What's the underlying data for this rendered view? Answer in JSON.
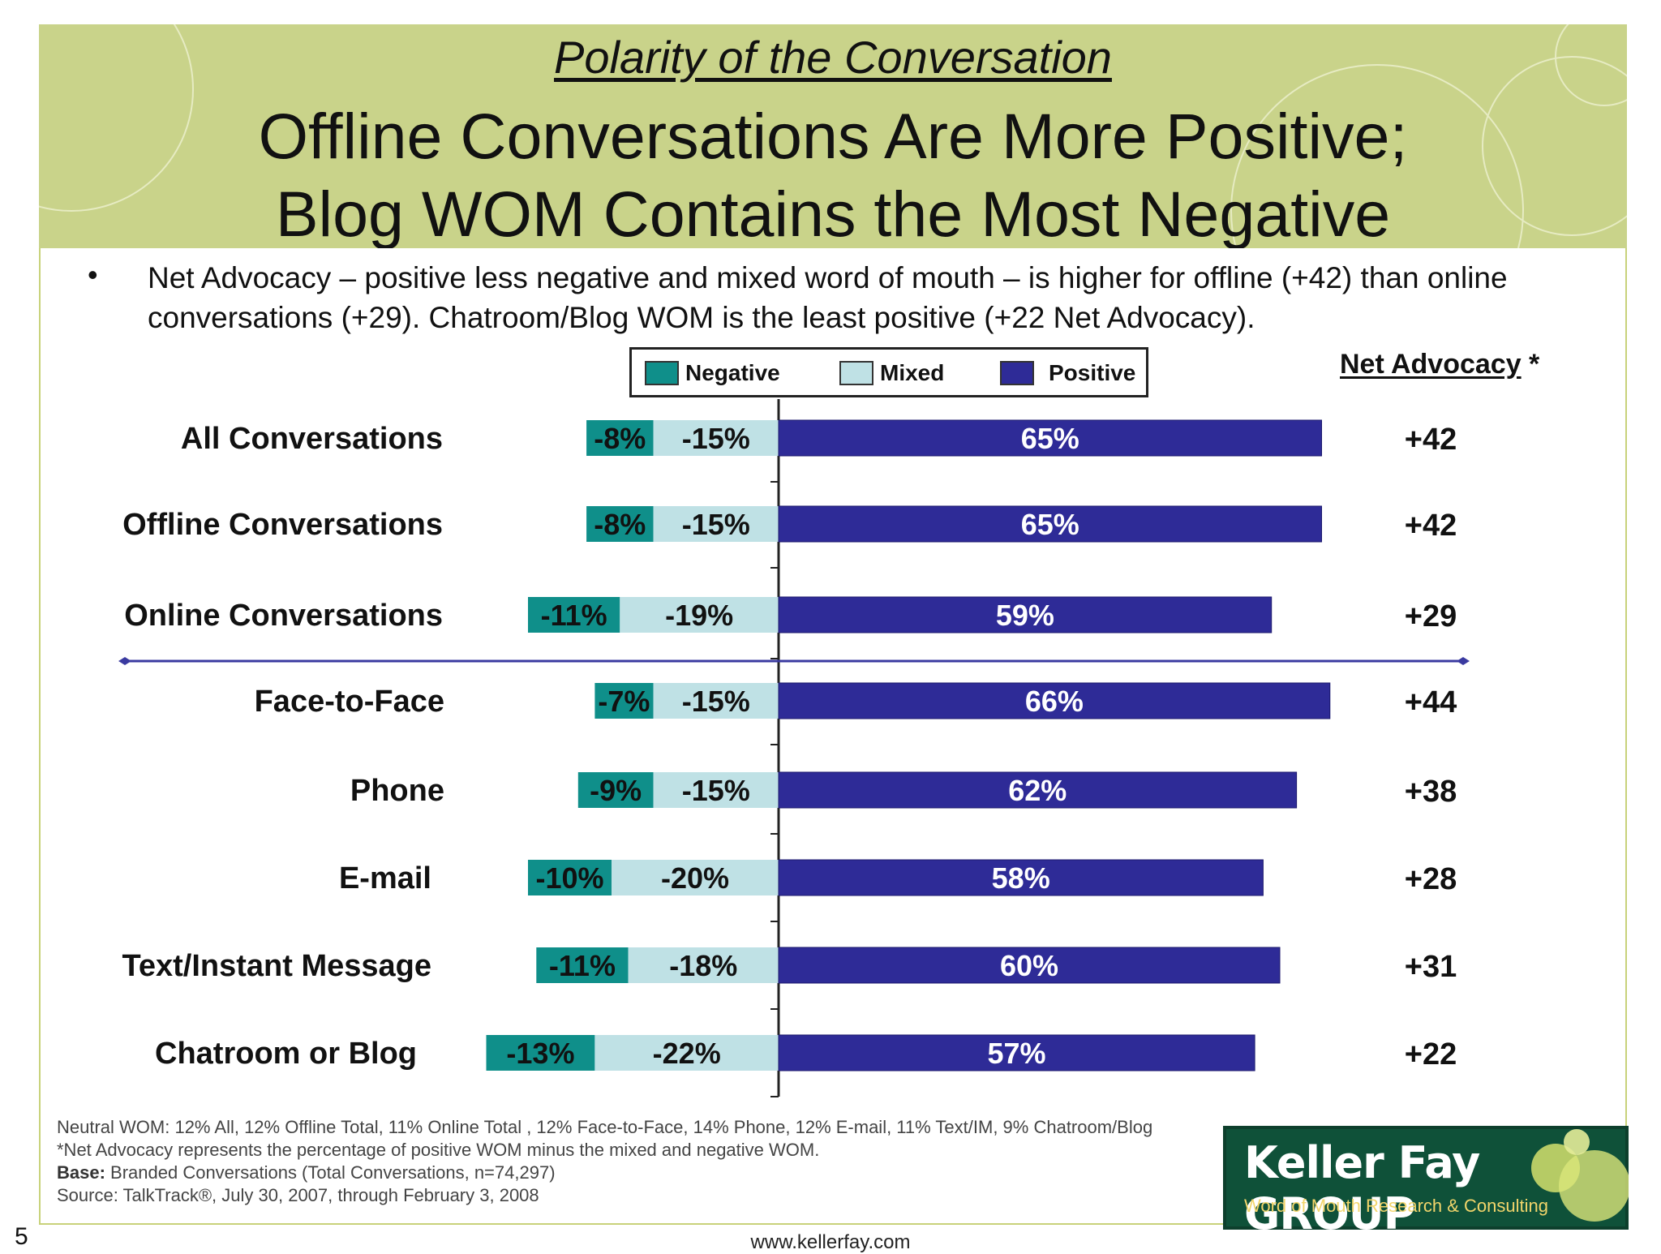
{
  "header": {
    "subtitle": "Polarity of the Conversation",
    "title_line1": "Offline Conversations Are More Positive;",
    "title_line2": "Blog WOM Contains the Most Negative"
  },
  "bullet": {
    "marker": "•",
    "text": "Net Advocacy – positive less negative and mixed word of mouth – is higher for offline (+42) than online conversations (+29). Chatroom/Blog WOM is the least positive (+22 Net Advocacy)."
  },
  "net_advocacy_header": {
    "label": "Net Advocacy",
    "suffix": " *"
  },
  "chart_data": {
    "type": "bar",
    "orientation": "horizontal",
    "stacked": true,
    "categories": [
      "All Conversations",
      "Offline Conversations",
      "Online Conversations",
      "Face-to-Face",
      "Phone",
      "E-mail",
      "Text/Instant Message",
      "Chatroom or Blog"
    ],
    "series": [
      {
        "name": "Negative",
        "color": "#0f8f8a",
        "values": [
          -8,
          -8,
          -11,
          -7,
          -9,
          -10,
          -11,
          -13
        ],
        "labels": [
          "-8%",
          "-8%",
          "-11%",
          "-7%",
          "-9%",
          "-10%",
          "-11%",
          "-13%"
        ]
      },
      {
        "name": "Mixed",
        "color": "#bfe1e5",
        "values": [
          -15,
          -15,
          -19,
          -15,
          -15,
          -20,
          -18,
          -22
        ],
        "labels": [
          "-15%",
          "-15%",
          "-19%",
          "-15%",
          "-15%",
          "-20%",
          "-18%",
          "-22%"
        ]
      },
      {
        "name": "Positive",
        "color": "#2e2b97",
        "values": [
          65,
          65,
          59,
          66,
          62,
          58,
          60,
          57
        ],
        "labels": [
          "65%",
          "65%",
          "59%",
          "66%",
          "62%",
          "58%",
          "60%",
          "57%"
        ]
      }
    ],
    "net_advocacy": [
      "+42",
      "+42",
      "+29",
      "+44",
      "+38",
      "+28",
      "+31",
      "+22"
    ],
    "legend_position": "top",
    "separator_after_category": "Online Conversations",
    "grid": false
  },
  "footnotes": {
    "neutral": "Neutral WOM: 12% All, 12% Offline Total, 11% Online Total , 12% Face-to-Face, 14% Phone, 12% E-mail, 11% Text/IM, 9% Chatroom/Blog",
    "net_def": "*Net Advocacy represents the percentage of positive WOM minus the mixed and negative WOM.",
    "base_label": "Base:",
    "base_text": " Branded Conversations (Total Conversations, n=74,297)",
    "source": "Source: TalkTrack®, July 30, 2007, through February 3, 2008"
  },
  "page_number": "5",
  "website": "www.kellerfay.com",
  "logo": {
    "name": "Keller Fay GROUP",
    "tagline": "Word of Mouth Research & Consulting"
  },
  "colors": {
    "header_band": "#c9d38a",
    "logo_bg": "#0f5139"
  }
}
